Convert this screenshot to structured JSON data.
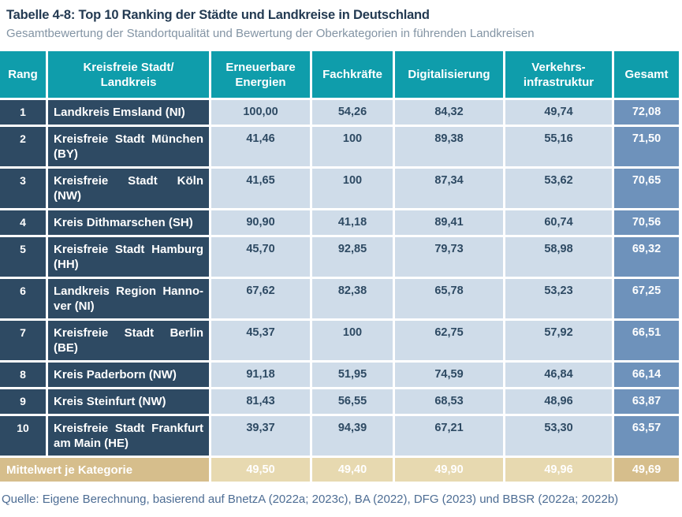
{
  "title": "Tabelle 4-8: Top 10 Ranking der Städte und Landkreise in Deutschland",
  "subtitle": "Gesamtbewertung der Standortqualität und Bewertung der Oberkategorien in führenden Landkreisen",
  "source_note": "Quelle: Eigene Berechnung, basierend auf BnetzA (2022a; 2023c), BA (2022), DFG (2023) und BBSR (2022a; 2022b)",
  "colors": {
    "header_bg": "#0f9dab",
    "rank_name_bg": "#2e4a63",
    "score_cell_bg": "#cfdce9",
    "total_column_bg": "#6e92bb",
    "mean_label_bg": "#d6be8c",
    "mean_cell_bg": "#e7d9b0",
    "score_text": "#2e4a63",
    "source_text": "#4d6d94"
  },
  "table": {
    "columns": [
      "Rang",
      "Kreisfreie Stadt/\nLandkreis",
      "Erneuerbare\nEnergien",
      "Fachkräfte",
      "Digitalisierung",
      "Verkehrs-\ninfrastruktur",
      "Gesamt"
    ],
    "rows": [
      {
        "rang": "1",
        "name": "Landkreis Emsland (NI)",
        "erneuerbare": "100,00",
        "fachkraefte": "54,26",
        "digitalisierung": "84,32",
        "verkehr": "49,74",
        "gesamt": "72,08"
      },
      {
        "rang": "2",
        "name": "Kreisfreie Stadt München\n(BY)",
        "erneuerbare": "41,46",
        "fachkraefte": "100",
        "digitalisierung": "89,38",
        "verkehr": "55,16",
        "gesamt": "71,50"
      },
      {
        "rang": "3",
        "name": "Kreisfreie Stadt Köln\n(NW)",
        "erneuerbare": "41,65",
        "fachkraefte": "100",
        "digitalisierung": "87,34",
        "verkehr": "53,62",
        "gesamt": "70,65"
      },
      {
        "rang": "4",
        "name": "Kreis Dithmarschen (SH)",
        "erneuerbare": "90,90",
        "fachkraefte": "41,18",
        "digitalisierung": "89,41",
        "verkehr": "60,74",
        "gesamt": "70,56"
      },
      {
        "rang": "5",
        "name": "Kreisfreie Stadt Hamburg\n(HH)",
        "erneuerbare": "45,70",
        "fachkraefte": "92,85",
        "digitalisierung": "79,73",
        "verkehr": "58,98",
        "gesamt": "69,32"
      },
      {
        "rang": "6",
        "name": "Landkreis Region Hanno-\nver (NI)",
        "erneuerbare": "67,62",
        "fachkraefte": "82,38",
        "digitalisierung": "65,78",
        "verkehr": "53,23",
        "gesamt": "67,25"
      },
      {
        "rang": "7",
        "name": "Kreisfreie Stadt Berlin\n(BE)",
        "erneuerbare": "45,37",
        "fachkraefte": "100",
        "digitalisierung": "62,75",
        "verkehr": "57,92",
        "gesamt": "66,51"
      },
      {
        "rang": "8",
        "name": "Kreis Paderborn (NW)",
        "erneuerbare": "91,18",
        "fachkraefte": "51,95",
        "digitalisierung": "74,59",
        "verkehr": "46,84",
        "gesamt": "66,14"
      },
      {
        "rang": "9",
        "name": "Kreis Steinfurt (NW)",
        "erneuerbare": "81,43",
        "fachkraefte": "56,55",
        "digitalisierung": "68,53",
        "verkehr": "48,96",
        "gesamt": "63,87"
      },
      {
        "rang": "10",
        "name": "Kreisfreie Stadt Frankfurt\nam Main (HE)",
        "erneuerbare": "39,37",
        "fachkraefte": "94,39",
        "digitalisierung": "67,21",
        "verkehr": "53,30",
        "gesamt": "63,57"
      }
    ],
    "mean_row": {
      "label": "Mittelwert je Kategorie",
      "erneuerbare": "49,50",
      "fachkraefte": "49,40",
      "digitalisierung": "49,90",
      "verkehr": "49,96",
      "gesamt": "49,69"
    }
  }
}
